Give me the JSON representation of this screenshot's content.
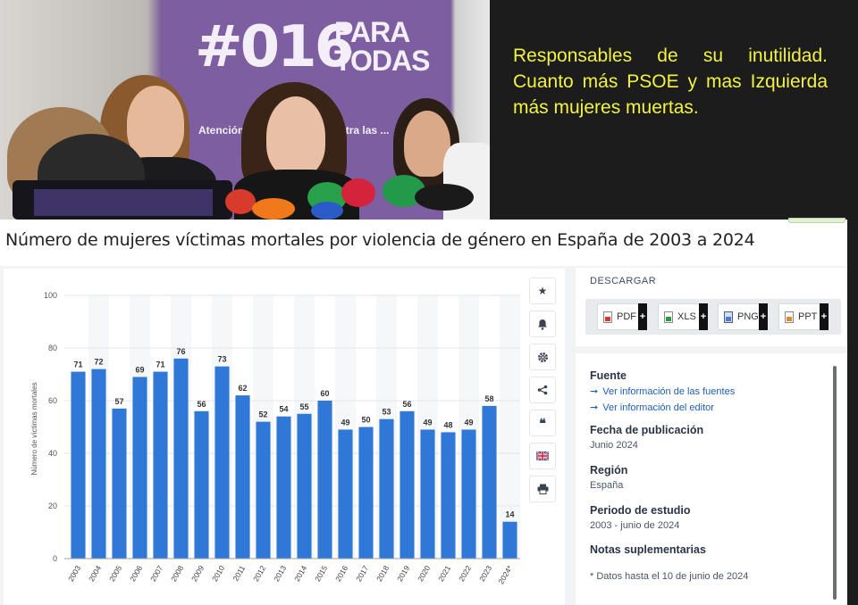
{
  "photo": {
    "banner_tag": "#016",
    "banner_para": "PARA TODAS",
    "banner_sub": "Atención a ... de violen... contra las ..."
  },
  "caption": "Responsables de su inutilidad. Cuanto más PSOE y mas Izquierda más mujeres muertas.",
  "statista": {
    "title": "Número de mujeres víctimas mortales por violencia de género en España de 2003 a 2024",
    "tools": [
      "star-icon",
      "bell-icon",
      "gear-icon",
      "share-icon",
      "quote-icon",
      "flag-icon",
      "print-icon"
    ],
    "download": {
      "label": "DESCARGAR",
      "buttons": [
        {
          "label": "PDF",
          "icon": "pdf-file-icon"
        },
        {
          "label": "XLS",
          "icon": "xls-file-icon"
        },
        {
          "label": "PNG",
          "icon": "png-file-icon"
        },
        {
          "label": "PPT",
          "icon": "ppt-file-icon"
        }
      ],
      "plus": "+"
    },
    "info": {
      "source_h": "Fuente",
      "link1": "Ver información de las fuentes",
      "link2": "Ver información del editor",
      "pub_h": "Fecha de publicación",
      "pub_v": "Junio 2024",
      "region_h": "Región",
      "region_v": "España",
      "period_h": "Periodo de estudio",
      "period_v": "2003 - junio de 2024",
      "notes_h": "Notas suplementarias",
      "notes_v": "* Datos hasta el 10 de junio de 2024"
    }
  },
  "chart_data": {
    "type": "bar",
    "title": "",
    "xlabel": "",
    "ylabel": "Número de víctimas mortales",
    "ylim": [
      0,
      100
    ],
    "yticks": [
      0,
      20,
      40,
      60,
      80,
      100
    ],
    "categories": [
      "2003",
      "2004",
      "2005",
      "2006",
      "2007",
      "2008",
      "2009",
      "2010",
      "2011",
      "2012",
      "2013",
      "2014",
      "2015",
      "2016",
      "2017",
      "2018",
      "2019",
      "2020",
      "2021",
      "2022",
      "2023",
      "2024*"
    ],
    "values": [
      71,
      72,
      57,
      69,
      71,
      76,
      56,
      73,
      62,
      52,
      54,
      55,
      60,
      49,
      50,
      53,
      56,
      49,
      48,
      49,
      58,
      14
    ],
    "bar_color": "#2f78d8",
    "grid": true
  }
}
